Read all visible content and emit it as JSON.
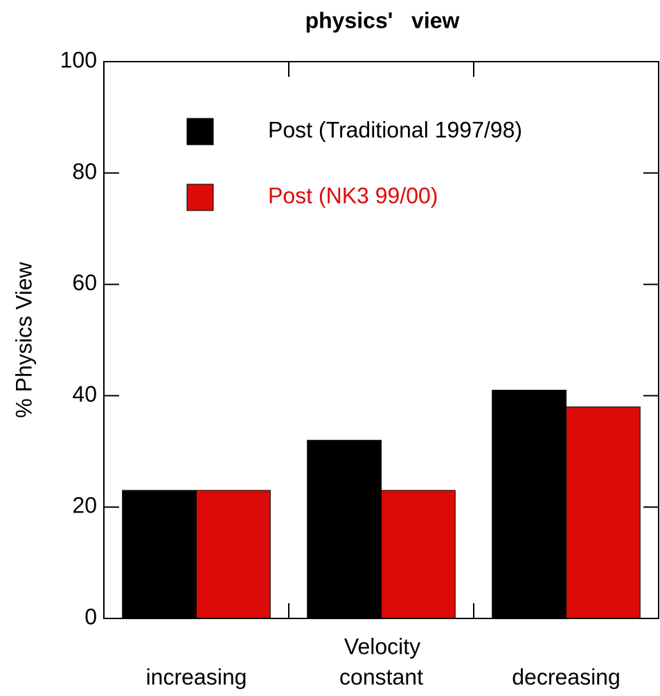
{
  "chart_data": {
    "type": "bar",
    "title": "physics'   view",
    "x_label": "Velocity",
    "y_label": "% Physics View",
    "categories": [
      "increasing",
      "constant",
      "decreasing"
    ],
    "series": [
      {
        "name": "Post (Traditional 1997/98)",
        "color": "#000000",
        "values": [
          23,
          32,
          41
        ]
      },
      {
        "name": "Post (NK3 99/00)",
        "color": "#dd0a0a",
        "values": [
          23,
          23,
          38
        ]
      }
    ],
    "ylim": [
      0,
      100
    ],
    "yticks": [
      0,
      20,
      40,
      60,
      80,
      100
    ],
    "legend": "upper left"
  }
}
